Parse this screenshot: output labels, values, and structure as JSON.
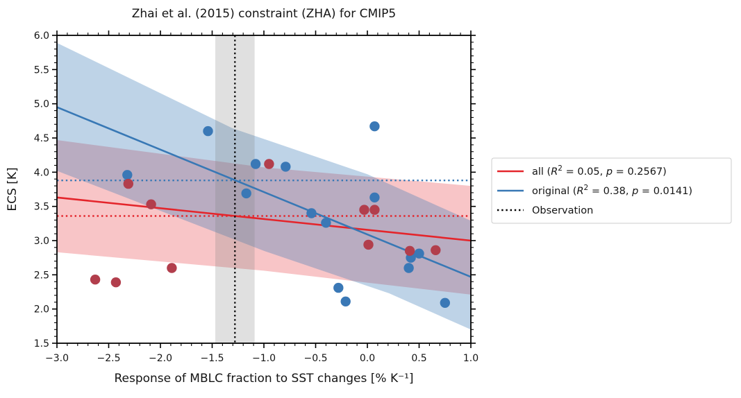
{
  "chart_data": {
    "type": "scatter",
    "title": "Zhai et al. (2015) constraint (ZHA) for CMIP5",
    "xlabel": "Response of MBLC fraction to SST changes [% K⁻¹]",
    "ylabel": "ECS [K]",
    "xlim": [
      -3.0,
      1.0
    ],
    "ylim": [
      1.5,
      6.0
    ],
    "grid": false,
    "minor_tick_step": 0.1,
    "xticks": {
      "values": [
        -3.0,
        -2.5,
        -2.0,
        -1.5,
        -1.0,
        -0.5,
        0.0,
        0.5,
        1.0
      ],
      "labels": [
        "−3.0",
        "−2.5",
        "−2.0",
        "−1.5",
        "−1.0",
        "−0.5",
        "0.0",
        "0.5",
        "1.0"
      ]
    },
    "yticks": {
      "values": [
        1.5,
        2.0,
        2.5,
        3.0,
        3.5,
        4.0,
        4.5,
        5.0,
        5.5,
        6.0
      ],
      "labels": [
        "1.5",
        "2.0",
        "2.5",
        "3.0",
        "3.5",
        "4.0",
        "4.5",
        "5.0",
        "5.5",
        "6.0"
      ]
    },
    "series": [
      {
        "name": "all",
        "marker_color": "#b23e4c",
        "points": [
          [
            -2.63,
            2.43
          ],
          [
            -2.43,
            2.39
          ],
          [
            -2.31,
            3.83
          ],
          [
            -2.09,
            3.53
          ],
          [
            -1.89,
            2.6
          ],
          [
            -0.95,
            4.12
          ],
          [
            -0.03,
            3.45
          ],
          [
            0.07,
            3.45
          ],
          [
            0.01,
            2.94
          ],
          [
            0.41,
            2.85
          ],
          [
            0.66,
            2.86
          ]
        ]
      },
      {
        "name": "original",
        "marker_color": "#3a78b6",
        "points": [
          [
            -2.32,
            3.96
          ],
          [
            -1.54,
            4.6
          ],
          [
            -1.17,
            3.69
          ],
          [
            -1.08,
            4.12
          ],
          [
            -0.79,
            4.08
          ],
          [
            -0.54,
            3.4
          ],
          [
            -0.4,
            3.26
          ],
          [
            -0.28,
            2.31
          ],
          [
            -0.21,
            2.11
          ],
          [
            0.07,
            4.67
          ],
          [
            0.07,
            3.63
          ],
          [
            0.4,
            2.6
          ],
          [
            0.42,
            2.75
          ],
          [
            0.5,
            2.81
          ],
          [
            0.75,
            2.09
          ]
        ]
      }
    ],
    "fits": [
      {
        "name": "all",
        "color": "#e4252b",
        "r_squared": 0.05,
        "p_value": 0.2567,
        "line": [
          [
            -3.0,
            3.63
          ],
          [
            1.0,
            3.0
          ]
        ],
        "constrained_y": 3.36,
        "band": {
          "fill": "rgba(229,40,47,0.27)",
          "top": [
            [
              -3.0,
              4.47
            ],
            [
              -1.0,
              4.07
            ],
            [
              1.0,
              3.8
            ]
          ],
          "bottom": [
            [
              -3.0,
              2.83
            ],
            [
              -1.0,
              2.56
            ],
            [
              1.0,
              2.21
            ]
          ]
        }
      },
      {
        "name": "original",
        "color": "#3878b5",
        "r_squared": 0.38,
        "p_value": 0.0141,
        "line": [
          [
            -3.0,
            4.95
          ],
          [
            1.0,
            2.47
          ]
        ],
        "constrained_y": 3.88,
        "band": {
          "fill": "rgba(58,122,182,0.33)",
          "top": [
            [
              -3.0,
              5.89
            ],
            [
              -1.3,
              4.64
            ],
            [
              0.0,
              3.97
            ],
            [
              1.0,
              3.29
            ]
          ],
          "bottom": [
            [
              -3.0,
              4.02
            ],
            [
              -1.0,
              2.85
            ],
            [
              0.21,
              2.23
            ],
            [
              1.0,
              1.7
            ]
          ]
        }
      }
    ],
    "observation": {
      "x": -1.28,
      "band": [
        -1.47,
        -1.09
      ],
      "color": "#000000",
      "band_fill": "rgba(127,127,127,0.24)"
    },
    "legend": {
      "position": "right-outside",
      "entries": [
        {
          "name": "all",
          "label": "all (R² = 0.05, p = 0.2567)",
          "color": "#e4252b",
          "style": "solid"
        },
        {
          "name": "original",
          "label": "original (R² = 0.38, p = 0.0141)",
          "color": "#3878b5",
          "style": "solid"
        },
        {
          "name": "observation",
          "label": "Observation",
          "color": "#000000",
          "style": "dotted"
        }
      ]
    }
  }
}
